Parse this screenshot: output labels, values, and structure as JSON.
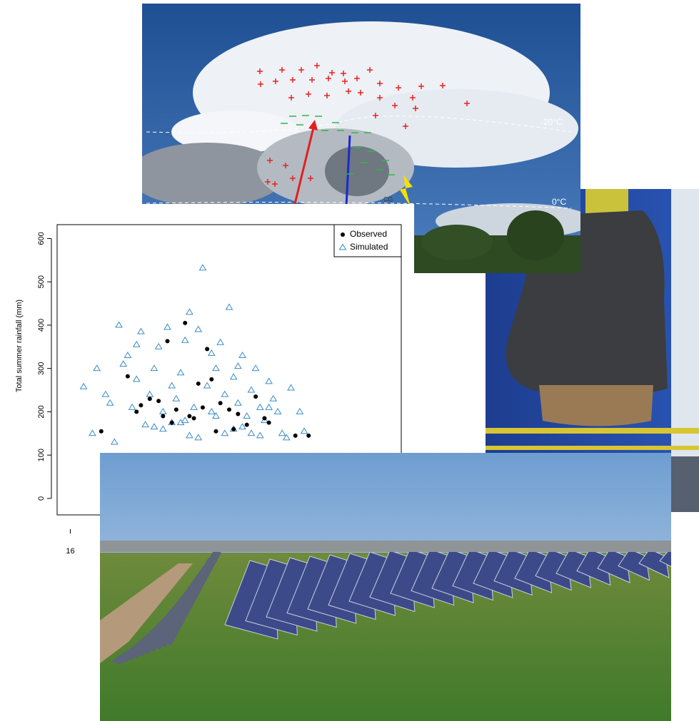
{
  "cloud_panel": {
    "labels": [
      "-20°C",
      "0°C",
      "CG"
    ]
  },
  "chart_data": {
    "type": "scatter",
    "ylabel": "Total summer rainfall (mm)",
    "xlim": [
      15.7,
      23.5
    ],
    "xticks": [
      16
    ],
    "ylim": [
      -38,
      632
    ],
    "yticks": [
      0,
      100,
      200,
      300,
      400,
      500,
      600
    ],
    "legend": "top-right",
    "series": [
      {
        "name": "Observed",
        "color": "#000000",
        "marker": "circle",
        "x": [
          17.3,
          17.6,
          17.8,
          18.0,
          18.2,
          18.4,
          18.6,
          18.7,
          18.9,
          19.1,
          19.2,
          19.4,
          19.6,
          19.8,
          20.0,
          20.2,
          20.5,
          18.1,
          18.8,
          19.3,
          17.5,
          18.3,
          19.0,
          19.7,
          20.4,
          21.1,
          21.4,
          16.7
        ],
        "values": [
          282,
          215,
          230,
          225,
          363,
          205,
          405,
          190,
          265,
          345,
          275,
          220,
          205,
          195,
          170,
          235,
          175,
          190,
          185,
          155,
          200,
          175,
          210,
          160,
          185,
          145,
          145,
          155
        ]
      },
      {
        "name": "Simulated",
        "color": "#3a8ac6",
        "marker": "triangle",
        "x": [
          16.3,
          16.6,
          16.9,
          17.1,
          17.3,
          17.5,
          17.6,
          17.8,
          17.9,
          18.0,
          18.1,
          18.2,
          18.3,
          18.4,
          18.5,
          18.6,
          18.7,
          18.8,
          18.9,
          19.0,
          19.1,
          19.2,
          19.3,
          19.4,
          19.5,
          19.6,
          19.7,
          19.8,
          19.9,
          20.0,
          20.1,
          20.2,
          20.3,
          20.4,
          20.5,
          20.6,
          20.7,
          20.8,
          21.0,
          21.2,
          16.5,
          17.0,
          17.4,
          17.7,
          18.1,
          18.5,
          18.9,
          19.3,
          19.7,
          20.1,
          20.5,
          20.9,
          21.3,
          16.8,
          17.2,
          17.9,
          18.3,
          18.7,
          19.5,
          19.9,
          20.3,
          17.5,
          18.6,
          19.2,
          19.8
        ],
        "values": [
          258,
          300,
          220,
          400,
          330,
          275,
          385,
          240,
          300,
          350,
          200,
          395,
          260,
          230,
          290,
          180,
          430,
          210,
          390,
          532,
          260,
          200,
          300,
          360,
          240,
          441,
          280,
          220,
          330,
          190,
          250,
          300,
          210,
          180,
          270,
          230,
          200,
          150,
          255,
          200,
          150,
          130,
          210,
          170,
          160,
          175,
          140,
          190,
          160,
          150,
          210,
          140,
          155,
          240,
          310,
          165,
          175,
          145,
          150,
          165,
          145,
          355,
          365,
          335,
          305
        ]
      }
    ]
  }
}
